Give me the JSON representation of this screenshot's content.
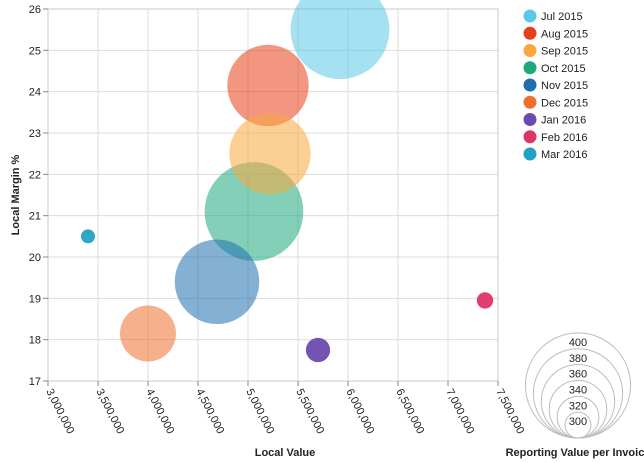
{
  "chart_data": {
    "type": "scatter",
    "variant": "bubble",
    "xlabel": "Local Value",
    "ylabel": "Local Margin %",
    "xlim": [
      3000000,
      7500000
    ],
    "ylim": [
      17,
      26
    ],
    "x_ticks": [
      3000000,
      3500000,
      4000000,
      4500000,
      5000000,
      5500000,
      6000000,
      6500000,
      7000000,
      7500000
    ],
    "x_tick_labels": [
      "3,000,000",
      "3,500,000",
      "4,000,000",
      "4,500,000",
      "5,000,000",
      "5,500,000",
      "6,000,000",
      "6,500,000",
      "7,000,000",
      "7,500,000"
    ],
    "y_ticks": [
      17,
      18,
      19,
      20,
      21,
      22,
      23,
      24,
      25,
      26
    ],
    "y_tick_labels": [
      "17",
      "18",
      "19",
      "20",
      "21",
      "22",
      "23",
      "24",
      "25",
      "26"
    ],
    "grid": true,
    "legend_position": "top-right",
    "series": [
      {
        "name": "Jul 2015",
        "color": "#5BC8E6",
        "x": 5920000,
        "y": 25.5,
        "size": 392
      },
      {
        "name": "Aug 2015",
        "color": "#E8401C",
        "x": 5200000,
        "y": 24.15,
        "size": 370
      },
      {
        "name": "Sep 2015",
        "color": "#F9A73E",
        "x": 5220000,
        "y": 22.5,
        "size": 370
      },
      {
        "name": "Oct 2015",
        "color": "#1FA77E",
        "x": 5060000,
        "y": 21.1,
        "size": 392
      },
      {
        "name": "Nov 2015",
        "color": "#1F6FB0",
        "x": 4690000,
        "y": 19.4,
        "size": 374
      },
      {
        "name": "Dec 2015",
        "color": "#F06F2E",
        "x": 4000000,
        "y": 18.15,
        "size": 338
      },
      {
        "name": "Jan 2016",
        "color": "#6B4BAE",
        "x": 5700000,
        "y": 17.75,
        "size": 298
      },
      {
        "name": "Feb 2016",
        "color": "#DE3467",
        "x": 7370000,
        "y": 18.95,
        "size": 288
      },
      {
        "name": "Mar 2016",
        "color": "#22A1C4",
        "x": 3400000,
        "y": 20.5,
        "size": 285
      }
    ],
    "size_legend": {
      "title": "Reporting Value per Invoice",
      "values": [
        400,
        380,
        360,
        340,
        320,
        300
      ]
    }
  }
}
